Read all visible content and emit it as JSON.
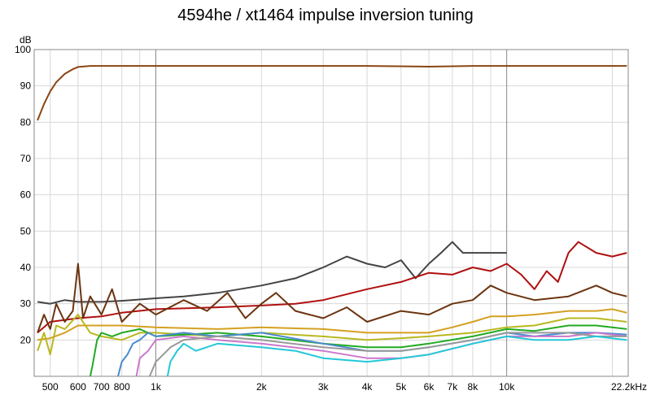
{
  "chart_data": {
    "type": "line",
    "title": "4594he / xt1464 impulse inversion tuning",
    "ylabel": "dB",
    "xlabel": "",
    "x_scale": "log",
    "xlim": [
      450,
      22200
    ],
    "ylim": [
      10,
      100
    ],
    "grid": true,
    "legend": "none",
    "y_ticks": [
      20,
      30,
      40,
      50,
      60,
      70,
      80,
      90,
      100
    ],
    "x_ticks": [
      {
        "v": 500,
        "label": "500"
      },
      {
        "v": 600,
        "label": "600"
      },
      {
        "v": 700,
        "label": "700"
      },
      {
        "v": 800,
        "label": "800"
      },
      {
        "v": 1000,
        "label": "1k"
      },
      {
        "v": 2000,
        "label": "2k"
      },
      {
        "v": 3000,
        "label": "3k"
      },
      {
        "v": 4000,
        "label": "4k"
      },
      {
        "v": 5000,
        "label": "5k"
      },
      {
        "v": 6000,
        "label": "6k"
      },
      {
        "v": 7000,
        "label": "7k"
      },
      {
        "v": 8000,
        "label": "8k"
      },
      {
        "v": 10000,
        "label": "10k"
      },
      {
        "v": 22200,
        "label": "22.2kHz"
      }
    ],
    "series": [
      {
        "color": "#8b4513",
        "x": [
          460,
          480,
          500,
          520,
          550,
          580,
          600,
          650,
          700,
          800,
          1000,
          2000,
          4000,
          6000,
          8000,
          10000,
          15000,
          22000
        ],
        "y": [
          80.5,
          85,
          88.5,
          91,
          93.3,
          94.6,
          95.2,
          95.5,
          95.5,
          95.5,
          95.5,
          95.5,
          95.5,
          95.3,
          95.5,
          95.5,
          95.5,
          95.5
        ]
      },
      {
        "color": "#444444",
        "x": [
          460,
          500,
          550,
          600,
          700,
          800,
          1000,
          1200,
          1500,
          2000,
          2500,
          3000,
          3500,
          4000,
          4500,
          5000,
          5500,
          6000,
          6500,
          7000,
          7500,
          8000,
          9000,
          10000
        ],
        "y": [
          30.5,
          30,
          31,
          30.5,
          30.5,
          30.8,
          31.5,
          32,
          33,
          35,
          37,
          40,
          43,
          41,
          40,
          42,
          37,
          41,
          44,
          47,
          44,
          44,
          44,
          44
        ]
      },
      {
        "color": "#b01010",
        "x": [
          460,
          500,
          600,
          700,
          800,
          1000,
          1500,
          2000,
          2500,
          3000,
          4000,
          5000,
          6000,
          7000,
          8000,
          9000,
          10000,
          11000,
          12000,
          13000,
          14000,
          15000,
          16000,
          18000,
          20000,
          22000
        ],
        "y": [
          22,
          25,
          26,
          26.5,
          27.5,
          28.5,
          29,
          29.5,
          30,
          31,
          34,
          36,
          38.5,
          38,
          40,
          39,
          41,
          38,
          34,
          39,
          36,
          44,
          47,
          44,
          43,
          44
        ]
      },
      {
        "color": "#6b3410",
        "x": [
          460,
          480,
          500,
          520,
          550,
          580,
          600,
          620,
          650,
          700,
          750,
          800,
          900,
          1000,
          1200,
          1400,
          1600,
          1800,
          2000,
          2200,
          2500,
          3000,
          3500,
          4000,
          5000,
          6000,
          7000,
          8000,
          9000,
          10000,
          12000,
          15000,
          18000,
          20000,
          22000
        ],
        "y": [
          22,
          27,
          23,
          30,
          25,
          28,
          41,
          26,
          32,
          27,
          34,
          25,
          30,
          27,
          31,
          28,
          33,
          26,
          30,
          33,
          28,
          26,
          29,
          25,
          28,
          27,
          30,
          31,
          35,
          33,
          31,
          32,
          35,
          33,
          32
        ]
      },
      {
        "color": "#d4a020",
        "x": [
          460,
          500,
          550,
          600,
          700,
          800,
          1000,
          1500,
          2000,
          3000,
          4000,
          5000,
          6000,
          7000,
          8000,
          9000,
          10000,
          12000,
          15000,
          18000,
          20000,
          22000
        ],
        "y": [
          20,
          20.5,
          22,
          24,
          24,
          24,
          23.5,
          23,
          23.5,
          23,
          22,
          22,
          22,
          23.5,
          25,
          26.5,
          26.5,
          27,
          28,
          28,
          28.5,
          27.5
        ]
      },
      {
        "color": "#b8b820",
        "x": [
          460,
          480,
          500,
          520,
          550,
          600,
          650,
          700,
          800,
          900,
          1000,
          1500,
          2000,
          3000,
          4000,
          5000,
          6000,
          8000,
          10000,
          12000,
          15000,
          18000,
          22000
        ],
        "y": [
          17,
          22,
          16,
          24,
          23,
          27,
          22,
          21,
          20,
          22,
          22,
          21,
          22,
          21,
          20,
          20.5,
          21,
          22,
          23.5,
          24,
          26,
          26,
          25
        ]
      },
      {
        "color": "#22aa22",
        "x": [
          650,
          660,
          680,
          700,
          750,
          800,
          900,
          1000,
          1500,
          2000,
          3000,
          4000,
          5000,
          6000,
          8000,
          10000,
          12000,
          15000,
          18000,
          22000
        ],
        "y": [
          10,
          13,
          20,
          22,
          21,
          22,
          23,
          21,
          22,
          21,
          19,
          18,
          18,
          19,
          21,
          23,
          22.5,
          24,
          24,
          23
        ]
      },
      {
        "color": "#4a8ad0",
        "x": [
          780,
          800,
          830,
          860,
          900,
          950,
          1000,
          1200,
          1500,
          2000,
          3000,
          4000,
          5000,
          6000,
          8000,
          10000,
          12000,
          15000,
          18000,
          22000
        ],
        "y": [
          10,
          14,
          16,
          19,
          20,
          22,
          21,
          22,
          21,
          22,
          19,
          17,
          17,
          18,
          20,
          22,
          21,
          22,
          22,
          21.5
        ]
      },
      {
        "color": "#cc77cc",
        "x": [
          880,
          900,
          950,
          1000,
          1200,
          1500,
          2000,
          3000,
          4000,
          5000,
          6000,
          8000,
          10000,
          12000,
          15000,
          18000,
          22000
        ],
        "y": [
          10,
          15,
          17,
          20,
          21,
          20,
          19,
          17,
          15,
          15,
          16,
          19,
          21,
          21,
          21,
          22,
          21
        ]
      },
      {
        "color": "#999999",
        "x": [
          960,
          1000,
          1050,
          1100,
          1200,
          1500,
          2000,
          3000,
          4000,
          5000,
          6000,
          8000,
          10000,
          12000,
          15000,
          18000,
          22000
        ],
        "y": [
          10,
          14,
          16,
          18,
          20,
          21,
          20,
          18,
          17,
          17,
          18,
          20,
          22,
          22,
          22,
          21,
          21
        ]
      },
      {
        "color": "#22c8d8",
        "x": [
          1080,
          1100,
          1150,
          1200,
          1300,
          1500,
          2000,
          2500,
          3000,
          4000,
          5000,
          6000,
          8000,
          10000,
          12000,
          15000,
          18000,
          22000
        ],
        "y": [
          10,
          14,
          17,
          19,
          17,
          19,
          18,
          17,
          15,
          14,
          15,
          16,
          19,
          21,
          20,
          20,
          21,
          20
        ]
      }
    ]
  }
}
